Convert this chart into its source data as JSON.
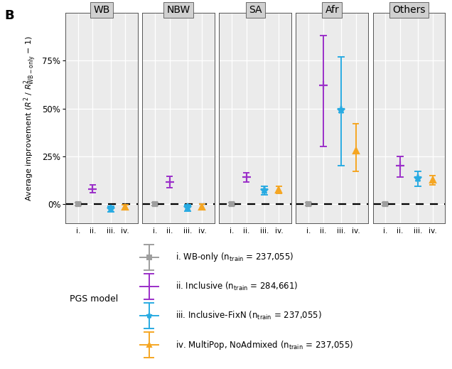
{
  "panels": [
    "WB",
    "NBW",
    "SA",
    "Afr",
    "Others"
  ],
  "models": [
    "i",
    "ii",
    "iii",
    "iv"
  ],
  "colors": {
    "i": "#9e9e9e",
    "ii": "#9B2FC9",
    "iii": "#29ABE2",
    "iv": "#F5A623"
  },
  "markers": {
    "i": "s",
    "ii": "+",
    "iii": "*",
    "iv": "^"
  },
  "data": {
    "WB": {
      "i": {
        "mean": 0.0,
        "lo": -0.8,
        "hi": 0.8
      },
      "ii": {
        "mean": 8.0,
        "lo": 6.0,
        "hi": 10.0
      },
      "iii": {
        "mean": -2.5,
        "lo": -4.0,
        "hi": -1.0
      },
      "iv": {
        "mean": -1.5,
        "lo": -3.0,
        "hi": -0.2
      }
    },
    "NBW": {
      "i": {
        "mean": 0.0,
        "lo": -0.8,
        "hi": 0.8
      },
      "ii": {
        "mean": 11.5,
        "lo": 8.5,
        "hi": 14.5
      },
      "iii": {
        "mean": -2.0,
        "lo": -3.5,
        "hi": -0.5
      },
      "iv": {
        "mean": -1.5,
        "lo": -3.0,
        "hi": 0.0
      }
    },
    "SA": {
      "i": {
        "mean": 0.0,
        "lo": -0.8,
        "hi": 0.8
      },
      "ii": {
        "mean": 14.0,
        "lo": 11.5,
        "hi": 16.5
      },
      "iii": {
        "mean": 7.0,
        "lo": 5.0,
        "hi": 9.5
      },
      "iv": {
        "mean": 7.5,
        "lo": 5.5,
        "hi": 9.5
      }
    },
    "Afr": {
      "i": {
        "mean": 0.0,
        "lo": -0.8,
        "hi": 0.8
      },
      "ii": {
        "mean": 62.0,
        "lo": 30.0,
        "hi": 88.0
      },
      "iii": {
        "mean": 49.0,
        "lo": 20.0,
        "hi": 77.0
      },
      "iv": {
        "mean": 28.0,
        "lo": 17.0,
        "hi": 42.0
      }
    },
    "Others": {
      "i": {
        "mean": 0.0,
        "lo": -0.8,
        "hi": 0.8
      },
      "ii": {
        "mean": 20.0,
        "lo": 14.0,
        "hi": 25.0
      },
      "iii": {
        "mean": 13.5,
        "lo": 9.5,
        "hi": 17.0
      },
      "iv": {
        "mean": 12.5,
        "lo": 10.0,
        "hi": 15.0
      }
    }
  },
  "ylim": [
    -10,
    100
  ],
  "yticks": [
    0,
    25,
    50,
    75
  ],
  "panel_bg": "#ebebeb",
  "grid_color": "#ffffff",
  "panel_label": "B",
  "marker_size_i": 5,
  "marker_size_ii": 8,
  "marker_size_iii": 8,
  "marker_size_iv": 6,
  "line_width": 1.4,
  "legend_labels": {
    "i": "i. WB-only (n",
    "ii": "ii. Inclusive (n",
    "iii": "iii. Inclusive-FixN (n",
    "iv": "iv. MultiPop, NoAdmixed (n"
  },
  "legend_n": {
    "i": "237,055)",
    "ii": "284,661)",
    "iii": "237,055)",
    "iv": "237,055)"
  }
}
